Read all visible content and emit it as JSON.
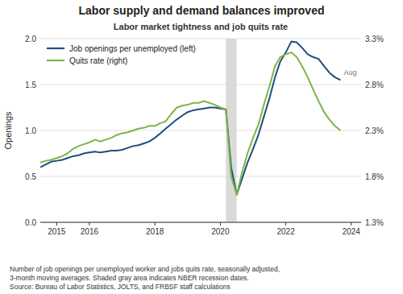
{
  "chart_data": {
    "type": "line",
    "title": "Labor supply and demand balances improved",
    "subtitle": "Labor market tightness and job quits rate",
    "ylabel": "Openings",
    "footnote": "Number of job openings per unemployed worker and jobs quits rate, seasonally adjusted,\n3-month moving averages. Shaded gray area indicates NBER recession dates.\nSource: Bureau of Labor Statistics, JOLTS, and FRBSF staff calculations",
    "annotations": [
      {
        "text": "Aug"
      }
    ],
    "xlim": [
      2014.5,
      2024.3
    ],
    "xticks": [
      2015,
      2016,
      2018,
      2020,
      2022,
      2024
    ],
    "ylim": [
      0.0,
      2.0
    ],
    "yticks": [
      {
        "value": 0.0,
        "label": "0.0"
      },
      0.5,
      {
        "value": 1.0,
        "label": "1.0"
      },
      1.5,
      {
        "value": 2.0,
        "label": "2.0"
      }
    ],
    "y2lim": [
      1.3,
      3.3
    ],
    "y2ticks": [
      {
        "value": 1.3,
        "label": "1.3%"
      },
      {
        "value": 1.8,
        "label": "1.8%"
      },
      {
        "value": 2.3,
        "label": "2.3%"
      },
      {
        "value": 2.8,
        "label": "2.8%"
      },
      {
        "value": 3.3,
        "label": "3.3%"
      }
    ],
    "grid": true,
    "legend": "upper left",
    "recession": [
      2020.17,
      2020.5
    ],
    "x": [
      2014.5,
      2014.67,
      2014.83,
      2015.0,
      2015.17,
      2015.33,
      2015.5,
      2015.67,
      2015.83,
      2016.0,
      2016.17,
      2016.33,
      2016.5,
      2016.67,
      2016.83,
      2017.0,
      2017.17,
      2017.33,
      2017.5,
      2017.67,
      2017.83,
      2018.0,
      2018.17,
      2018.33,
      2018.5,
      2018.67,
      2018.83,
      2019.0,
      2019.17,
      2019.33,
      2019.5,
      2019.67,
      2019.83,
      2020.0,
      2020.17,
      2020.33,
      2020.5,
      2020.67,
      2020.83,
      2021.0,
      2021.17,
      2021.33,
      2021.5,
      2021.67,
      2021.83,
      2022.0,
      2022.17,
      2022.33,
      2022.5,
      2022.67,
      2022.83,
      2023.0,
      2023.17,
      2023.33,
      2023.5,
      2023.67
    ],
    "series": [
      {
        "name": "Job openings per unemployed (left)",
        "color": "#1f4e79",
        "values": [
          0.6,
          0.63,
          0.66,
          0.67,
          0.68,
          0.7,
          0.72,
          0.73,
          0.75,
          0.76,
          0.77,
          0.76,
          0.77,
          0.78,
          0.78,
          0.79,
          0.81,
          0.83,
          0.84,
          0.86,
          0.88,
          0.92,
          0.97,
          1.02,
          1.07,
          1.12,
          1.16,
          1.2,
          1.22,
          1.23,
          1.24,
          1.25,
          1.25,
          1.24,
          1.23,
          0.6,
          0.3,
          0.48,
          0.65,
          0.8,
          0.96,
          1.15,
          1.35,
          1.58,
          1.75,
          1.85,
          1.97,
          1.96,
          1.9,
          1.83,
          1.8,
          1.78,
          1.7,
          1.63,
          1.58,
          1.55
        ]
      },
      {
        "name": "Quits rate (right)",
        "color": "#7ab648",
        "axis": "y2",
        "values": [
          1.95,
          1.97,
          1.98,
          2.0,
          2.02,
          2.05,
          2.1,
          2.13,
          2.15,
          2.17,
          2.2,
          2.18,
          2.2,
          2.22,
          2.25,
          2.27,
          2.28,
          2.3,
          2.32,
          2.33,
          2.35,
          2.35,
          2.38,
          2.4,
          2.48,
          2.55,
          2.57,
          2.58,
          2.6,
          2.6,
          2.62,
          2.6,
          2.58,
          2.55,
          2.53,
          1.8,
          1.6,
          1.85,
          2.05,
          2.22,
          2.37,
          2.58,
          2.78,
          3.0,
          3.1,
          3.13,
          3.15,
          3.1,
          3.0,
          2.88,
          2.75,
          2.62,
          2.5,
          2.42,
          2.35,
          2.3
        ]
      }
    ]
  }
}
